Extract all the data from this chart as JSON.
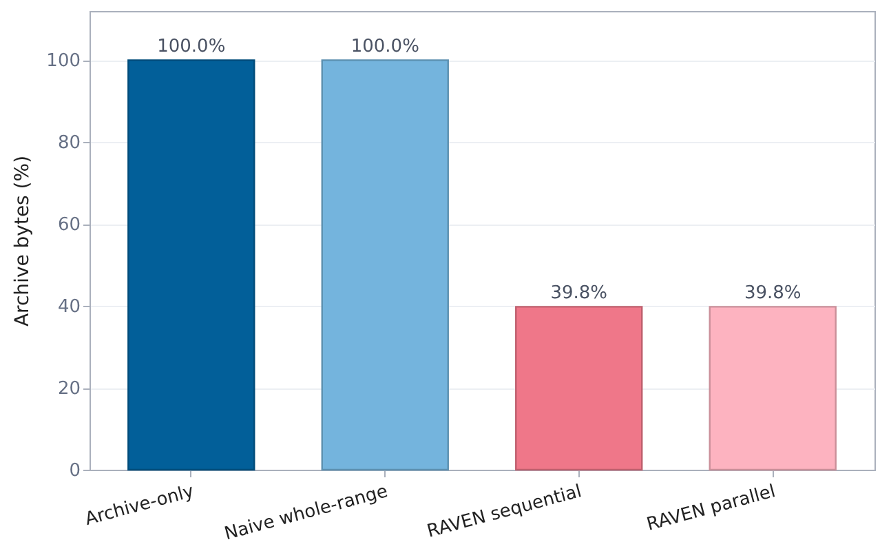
{
  "chart_data": {
    "type": "bar",
    "ylabel": "Archive bytes (%)",
    "categories": [
      "Archive-only",
      "Naive whole-range",
      "RAVEN sequential",
      "RAVEN parallel"
    ],
    "values": [
      100,
      100,
      39.8,
      39.8
    ],
    "colors": [
      "#025f99",
      "#74b4dd",
      "#ef7789",
      "#fdb3c0"
    ],
    "value_labels": [
      "100.0%",
      "100.0%",
      "39.8%",
      "39.8%"
    ],
    "ylim": [
      0,
      112
    ],
    "yticks": [
      0,
      20,
      40,
      60,
      80,
      100
    ],
    "grid": "y"
  }
}
